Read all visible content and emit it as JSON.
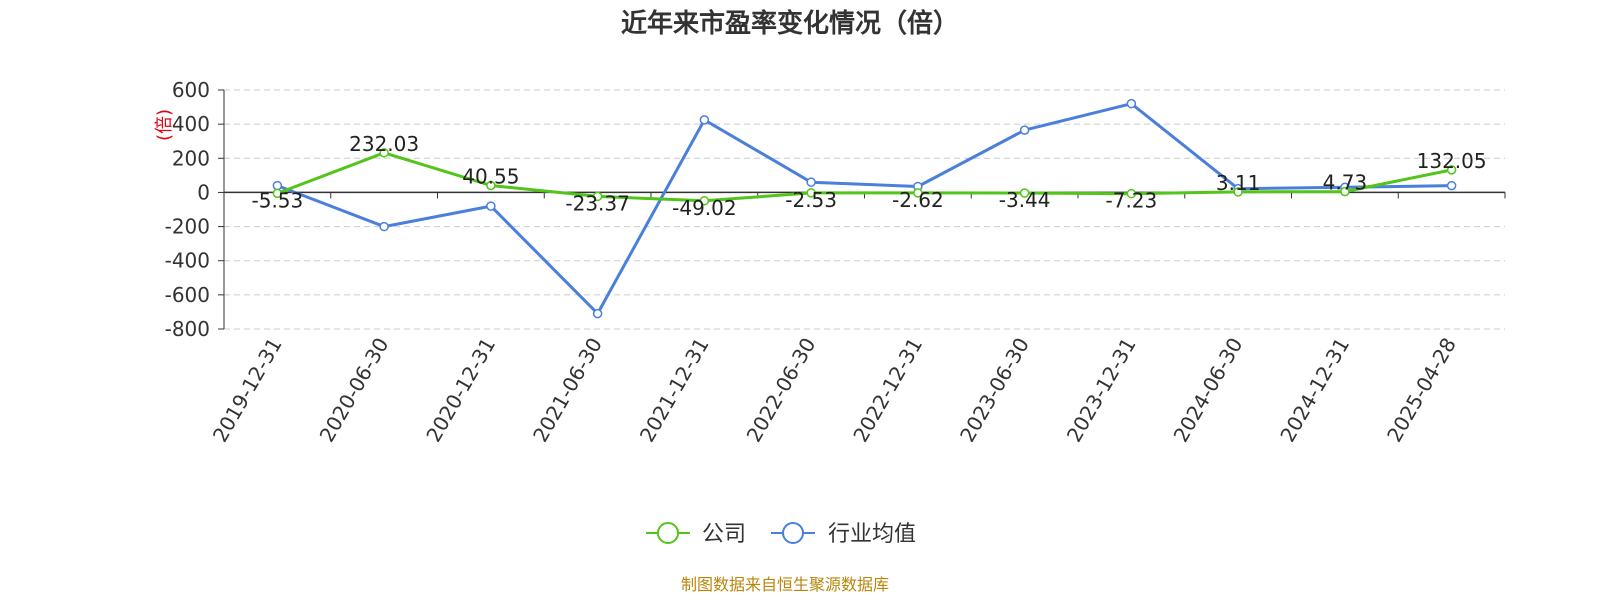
{
  "chart_data": {
    "type": "line",
    "title": "近年来市盈率变化情况（倍）",
    "ylabel": "(倍)",
    "xlabel": "",
    "categories": [
      "2019-12-31",
      "2020-06-30",
      "2020-12-31",
      "2021-06-30",
      "2021-12-31",
      "2022-06-30",
      "2022-12-31",
      "2023-06-30",
      "2023-12-31",
      "2024-06-30",
      "2024-12-31",
      "2025-04-28"
    ],
    "ylim": [
      -800,
      600
    ],
    "yticks": [
      600,
      400,
      200,
      0,
      -200,
      -400,
      -600,
      -800
    ],
    "grid": true,
    "legend_position": "bottom",
    "series": [
      {
        "name": "公司",
        "color": "#52c41a",
        "values": [
          -5.53,
          232.03,
          40.55,
          -23.37,
          -49.02,
          -2.53,
          -2.62,
          -3.44,
          -7.23,
          3.11,
          4.73,
          132.05
        ],
        "labels": [
          "-5.53",
          "232.03",
          "40.55",
          "-23.37",
          "-49.02",
          "-2.53",
          "-2.62",
          "-3.44",
          "-7.23",
          "3.11",
          "4.73",
          "132.05"
        ]
      },
      {
        "name": "行业均值",
        "color": "#4a7fdc",
        "values": [
          40,
          -200,
          -80,
          -710,
          425,
          60,
          35,
          365,
          520,
          22,
          30,
          40
        ]
      }
    ],
    "source": "制图数据来自恒生聚源数据库"
  }
}
